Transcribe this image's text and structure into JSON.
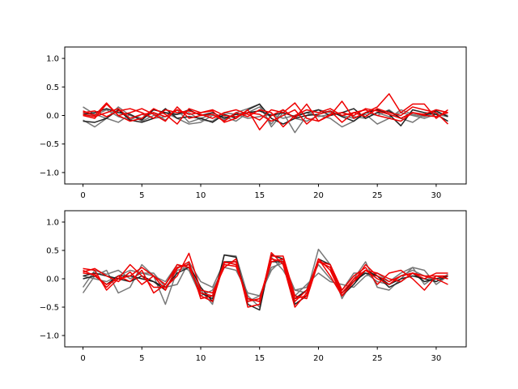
{
  "chart_data": [
    {
      "type": "line",
      "title": "",
      "xlabel": "",
      "ylabel": "",
      "xlim": [
        -1.55,
        32.55
      ],
      "ylim": [
        -1.2,
        1.2
      ],
      "xticks": [
        0,
        5,
        10,
        15,
        20,
        25,
        30
      ],
      "yticks": [
        -1.0,
        -0.5,
        0.0,
        0.5,
        1.0
      ],
      "ytick_labels": [
        "−1.0",
        "−0.5",
        "0.0",
        "0.5",
        "1.0"
      ],
      "grid": false,
      "x": [
        0,
        1,
        2,
        3,
        4,
        5,
        6,
        7,
        8,
        9,
        10,
        11,
        12,
        13,
        14,
        15,
        16,
        17,
        18,
        19,
        20,
        21,
        22,
        23,
        24,
        25,
        26,
        27,
        28,
        29,
        30,
        31
      ],
      "series": [
        {
          "color": "#777777",
          "values": [
            0.15,
            0.02,
            -0.05,
            0.15,
            0.0,
            -0.05,
            0.05,
            -0.08,
            0.1,
            -0.12,
            -0.05,
            0.02,
            -0.08,
            0.05,
            0.12,
            0.2,
            -0.2,
            0.05,
            -0.3,
            0.0,
            0.1,
            0.05,
            0.0,
            -0.05,
            0.02,
            -0.15,
            -0.05,
            0.1,
            0.02,
            -0.02,
            0.05,
            0.0
          ]
        },
        {
          "color": "#777777",
          "values": [
            -0.08,
            -0.2,
            -0.05,
            -0.12,
            0.02,
            -0.1,
            0.0,
            0.05,
            -0.05,
            -0.15,
            -0.12,
            0.0,
            -0.02,
            -0.1,
            0.05,
            0.15,
            -0.15,
            0.1,
            -0.05,
            -0.1,
            0.0,
            -0.05,
            -0.2,
            -0.1,
            0.05,
            0.0,
            0.1,
            -0.05,
            -0.12,
            0.02,
            0.1,
            0.05
          ]
        },
        {
          "color": "#777777",
          "values": [
            0.05,
            0.0,
            0.1,
            -0.02,
            -0.08,
            0.02,
            -0.05,
            -0.02,
            0.02,
            0.05,
            -0.08,
            -0.1,
            0.05,
            0.02,
            -0.05,
            -0.02,
            0.02,
            -0.05,
            0.0,
            0.05,
            -0.02,
            0.02,
            0.05,
            -0.02,
            -0.05,
            0.05,
            -0.02,
            0.05,
            0.0,
            -0.05,
            0.02,
            -0.02
          ]
        },
        {
          "color": "#222222",
          "values": [
            -0.1,
            -0.12,
            -0.05,
            0.1,
            -0.08,
            -0.12,
            -0.05,
            0.12,
            -0.05,
            -0.02,
            -0.05,
            -0.12,
            0.02,
            -0.05,
            0.1,
            0.2,
            -0.05,
            -0.15,
            -0.05,
            0.0,
            0.02,
            0.08,
            -0.02,
            -0.1,
            0.05,
            0.1,
            0.02,
            -0.18,
            0.1,
            0.05,
            0.02,
            -0.1
          ]
        },
        {
          "color": "#222222",
          "values": [
            0.02,
            0.05,
            0.12,
            0.05,
            0.02,
            -0.08,
            0.1,
            0.05,
            0.02,
            0.1,
            0.0,
            0.05,
            -0.05,
            0.02,
            0.05,
            0.08,
            0.0,
            0.05,
            -0.02,
            0.05,
            0.1,
            0.0,
            0.05,
            0.12,
            -0.05,
            0.05,
            0.08,
            -0.05,
            0.05,
            0.0,
            0.08,
            -0.02
          ]
        },
        {
          "color": "#ee0000",
          "values": [
            0.08,
            0.0,
            0.22,
            0.0,
            -0.1,
            -0.05,
            0.12,
            0.02,
            -0.15,
            0.12,
            0.05,
            0.08,
            -0.12,
            -0.05,
            0.1,
            -0.25,
            0.0,
            0.1,
            -0.05,
            0.2,
            -0.1,
            0.0,
            0.25,
            -0.05,
            0.05,
            0.15,
            0.38,
            0.05,
            0.2,
            0.2,
            -0.05,
            0.1
          ]
        },
        {
          "color": "#ee0000",
          "values": [
            0.0,
            -0.05,
            0.2,
            0.0,
            0.05,
            0.12,
            0.02,
            -0.1,
            0.15,
            -0.05,
            0.0,
            0.02,
            -0.1,
            0.05,
            -0.02,
            0.1,
            0.05,
            -0.2,
            0.0,
            0.1,
            0.05,
            0.12,
            0.0,
            0.05,
            -0.02,
            0.12,
            0.05,
            0.0,
            0.15,
            0.1,
            0.05,
            -0.15
          ]
        },
        {
          "color": "#ee0000",
          "values": [
            0.05,
            0.08,
            -0.02,
            0.08,
            0.12,
            0.05,
            -0.05,
            0.1,
            0.05,
            0.08,
            0.02,
            -0.05,
            0.05,
            0.1,
            0.02,
            -0.08,
            0.1,
            0.05,
            0.22,
            -0.05,
            -0.1,
            0.02,
            0.05,
            0.0,
            0.12,
            0.08,
            0.02,
            -0.05,
            0.05,
            0.02,
            0.1,
            0.05
          ]
        },
        {
          "color": "#ee0000",
          "values": [
            0.02,
            -0.02,
            0.05,
            0.12,
            -0.05,
            0.02,
            0.05,
            -0.02,
            0.1,
            0.02,
            0.05,
            0.1,
            0.0,
            -0.02,
            0.05,
            0.02,
            -0.1,
            0.0,
            0.1,
            -0.15,
            0.02,
            0.08,
            -0.12,
            0.05,
            0.1,
            0.0,
            -0.05,
            -0.1,
            0.05,
            0.0,
            -0.02,
            0.05
          ]
        }
      ]
    },
    {
      "type": "line",
      "title": "",
      "xlabel": "",
      "ylabel": "",
      "xlim": [
        -1.55,
        32.55
      ],
      "ylim": [
        -1.2,
        1.2
      ],
      "xticks": [
        0,
        5,
        10,
        15,
        20,
        25,
        30
      ],
      "yticks": [
        -1.0,
        -0.5,
        0.0,
        0.5,
        1.0
      ],
      "ytick_labels": [
        "−1.0",
        "−0.5",
        "0.0",
        "0.5",
        "1.0"
      ],
      "grid": false,
      "x": [
        0,
        1,
        2,
        3,
        4,
        5,
        6,
        7,
        8,
        9,
        10,
        11,
        12,
        13,
        14,
        15,
        16,
        17,
        18,
        19,
        20,
        21,
        22,
        23,
        24,
        25,
        26,
        27,
        28,
        29,
        30,
        31
      ],
      "series": [
        {
          "color": "#777777",
          "values": [
            -0.25,
            0.05,
            0.15,
            -0.25,
            -0.15,
            0.25,
            0.05,
            -0.45,
            0.15,
            0.2,
            -0.2,
            -0.45,
            0.42,
            0.4,
            -0.3,
            -0.5,
            0.38,
            0.15,
            -0.2,
            -0.25,
            0.52,
            0.25,
            -0.35,
            0.0,
            0.3,
            -0.15,
            -0.2,
            0.0,
            0.2,
            0.15,
            -0.1,
            0.05
          ]
        },
        {
          "color": "#777777",
          "values": [
            -0.15,
            0.15,
            0.08,
            0.15,
            0.0,
            0.1,
            0.05,
            -0.05,
            0.25,
            0.15,
            -0.3,
            -0.2,
            0.2,
            0.15,
            -0.25,
            -0.3,
            0.15,
            0.35,
            -0.3,
            -0.1,
            0.1,
            -0.05,
            -0.1,
            -0.15,
            0.05,
            0.1,
            -0.05,
            0.1,
            0.2,
            -0.1,
            0.05,
            0.0
          ]
        },
        {
          "color": "#777777",
          "values": [
            0.05,
            0.0,
            -0.05,
            0.05,
            0.15,
            0.1,
            0.1,
            -0.15,
            -0.1,
            0.3,
            -0.05,
            -0.15,
            0.3,
            0.25,
            -0.4,
            -0.3,
            0.2,
            0.28,
            -0.2,
            -0.15,
            0.25,
            0.0,
            -0.2,
            0.1,
            0.1,
            -0.05,
            -0.1,
            0.05,
            0.15,
            0.05,
            -0.05,
            0.08
          ]
        },
        {
          "color": "#222222",
          "values": [
            0.05,
            0.1,
            0.05,
            0.0,
            -0.05,
            0.05,
            -0.05,
            -0.2,
            0.2,
            0.25,
            -0.15,
            -0.4,
            0.42,
            0.38,
            -0.45,
            -0.55,
            0.42,
            0.35,
            -0.45,
            -0.3,
            0.35,
            0.25,
            -0.3,
            -0.1,
            0.15,
            0.05,
            -0.15,
            -0.05,
            0.1,
            -0.05,
            0.0,
            0.05
          ]
        },
        {
          "color": "#222222",
          "values": [
            0.0,
            0.05,
            -0.1,
            0.05,
            0.05,
            0.0,
            -0.05,
            -0.15,
            0.1,
            0.2,
            -0.25,
            -0.35,
            0.3,
            0.3,
            -0.35,
            -0.4,
            0.3,
            0.3,
            -0.35,
            -0.2,
            0.3,
            0.2,
            -0.25,
            -0.05,
            0.1,
            0.05,
            -0.1,
            0.0,
            0.05,
            0.0,
            -0.05,
            0.05
          ]
        },
        {
          "color": "#ee0000",
          "values": [
            0.18,
            0.15,
            -0.2,
            0.0,
            0.25,
            0.05,
            -0.15,
            -0.15,
            0.05,
            0.45,
            -0.2,
            -0.25,
            0.2,
            0.35,
            -0.5,
            -0.45,
            0.46,
            0.25,
            -0.5,
            -0.25,
            0.35,
            0.05,
            -0.3,
            -0.05,
            0.25,
            0.05,
            -0.05,
            0.05,
            0.1,
            0.0,
            0.1,
            0.1
          ]
        },
        {
          "color": "#ee0000",
          "values": [
            0.12,
            0.18,
            0.05,
            -0.05,
            0.12,
            -0.1,
            0.05,
            -0.2,
            0.18,
            0.3,
            -0.35,
            -0.3,
            0.25,
            0.22,
            -0.35,
            -0.4,
            0.4,
            0.4,
            -0.3,
            -0.35,
            0.3,
            0.25,
            -0.2,
            0.05,
            0.2,
            -0.1,
            0.1,
            0.15,
            0.0,
            -0.2,
            0.05,
            0.0
          ]
        },
        {
          "color": "#ee0000",
          "values": [
            0.15,
            0.05,
            -0.1,
            0.0,
            0.05,
            0.2,
            0.05,
            -0.1,
            0.2,
            0.25,
            -0.3,
            -0.4,
            0.28,
            0.3,
            -0.4,
            -0.35,
            0.35,
            0.3,
            -0.4,
            -0.2,
            0.3,
            0.2,
            -0.25,
            0.0,
            0.15,
            0.0,
            -0.1,
            0.05,
            0.1,
            0.05,
            0.0,
            -0.1
          ]
        },
        {
          "color": "#ee0000",
          "values": [
            0.1,
            0.08,
            -0.15,
            0.05,
            -0.05,
            0.15,
            -0.25,
            -0.1,
            0.25,
            0.2,
            -0.25,
            -0.3,
            0.3,
            0.25,
            -0.35,
            -0.4,
            0.3,
            0.35,
            -0.35,
            -0.3,
            0.35,
            0.15,
            -0.3,
            -0.05,
            0.15,
            0.1,
            0.0,
            -0.05,
            0.1,
            0.05,
            0.05,
            0.05
          ]
        }
      ]
    }
  ]
}
